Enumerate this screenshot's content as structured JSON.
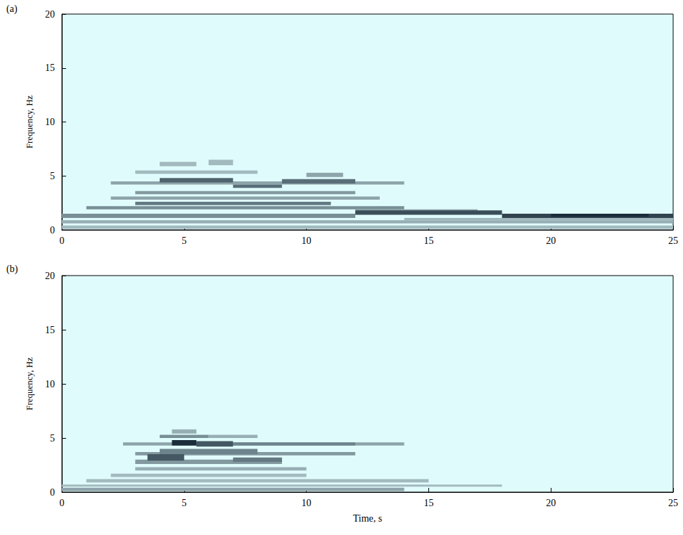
{
  "chart_data": [
    {
      "type": "heatmap",
      "title": "(a)",
      "y_label": "Frequency, Hz",
      "xlim": [
        0,
        25
      ],
      "xticks": [
        0,
        5,
        10,
        15,
        20,
        25
      ],
      "ylim": [
        0,
        20
      ],
      "yticks": [
        0,
        5,
        10,
        15,
        20
      ],
      "grid": false,
      "color": "#1b2d3b",
      "cells": [
        [
          0,
          25,
          0.1,
          0.4,
          0.3
        ],
        [
          0,
          25,
          0.6,
          0.9,
          0.35
        ],
        [
          14,
          25,
          0.9,
          1.1,
          0.3
        ],
        [
          3,
          8,
          5.2,
          5.5,
          0.3
        ],
        [
          4,
          5.5,
          5.9,
          6.3,
          0.3
        ],
        [
          6,
          7,
          6.0,
          6.5,
          0.3
        ],
        [
          2,
          13,
          2.8,
          3.1,
          0.4
        ],
        [
          2,
          14,
          4.2,
          4.5,
          0.4
        ],
        [
          10,
          11.5,
          4.9,
          5.3,
          0.4
        ],
        [
          12,
          17,
          1.6,
          1.9,
          0.4
        ],
        [
          3,
          12,
          3.3,
          3.6,
          0.45
        ],
        [
          0,
          12,
          1.1,
          1.5,
          0.5
        ],
        [
          1,
          14,
          1.9,
          2.2,
          0.5
        ],
        [
          3,
          11,
          2.3,
          2.6,
          0.6
        ],
        [
          7,
          9,
          3.9,
          4.2,
          0.65
        ],
        [
          9,
          12,
          4.3,
          4.7,
          0.65
        ],
        [
          4,
          7,
          4.4,
          4.8,
          0.7
        ],
        [
          12,
          18,
          1.4,
          1.8,
          0.8
        ],
        [
          18,
          25,
          1.1,
          1.5,
          0.85
        ],
        [
          20,
          24,
          1.2,
          1.5,
          0.95
        ]
      ]
    },
    {
      "type": "heatmap",
      "title": "(b)",
      "x_label": "Time, s",
      "y_label": "Frequency, Hz",
      "xlim": [
        0,
        25
      ],
      "xticks": [
        0,
        5,
        10,
        15,
        20,
        25
      ],
      "ylim": [
        0,
        20
      ],
      "yticks": [
        0,
        5,
        10,
        15,
        20
      ],
      "grid": false,
      "color": "#1b2d3b",
      "cells": [
        [
          0,
          18,
          0.5,
          0.7,
          0.3
        ],
        [
          1,
          15,
          0.9,
          1.2,
          0.3
        ],
        [
          2,
          10,
          1.4,
          1.7,
          0.3
        ],
        [
          0,
          14,
          0.1,
          0.4,
          0.4
        ],
        [
          3,
          10,
          2.0,
          2.3,
          0.35
        ],
        [
          4.5,
          5.5,
          5.4,
          5.8,
          0.35
        ],
        [
          6,
          8,
          5.0,
          5.3,
          0.35
        ],
        [
          2.5,
          14,
          4.3,
          4.6,
          0.4
        ],
        [
          3,
          9,
          2.6,
          3.0,
          0.45
        ],
        [
          3,
          12,
          3.4,
          3.7,
          0.45
        ],
        [
          4,
          6,
          5.0,
          5.3,
          0.5
        ],
        [
          4,
          8,
          3.5,
          4.0,
          0.55
        ],
        [
          7,
          12,
          4.3,
          4.6,
          0.55
        ],
        [
          7,
          9,
          2.8,
          3.2,
          0.6
        ],
        [
          3.5,
          5,
          2.9,
          3.5,
          0.75
        ],
        [
          5.5,
          7,
          4.2,
          4.7,
          0.75
        ],
        [
          4.5,
          5.5,
          4.3,
          4.8,
          0.95
        ]
      ]
    }
  ]
}
